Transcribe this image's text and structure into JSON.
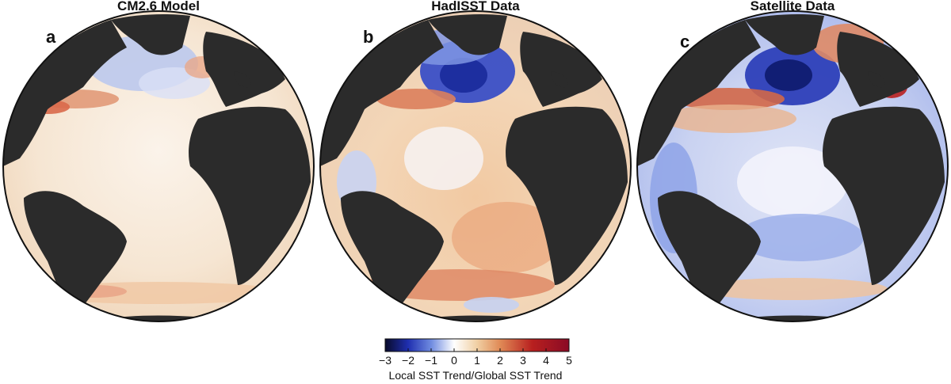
{
  "panels": [
    {
      "title": "CM2.6 Model",
      "letter": "a",
      "basemap": "atlantic-orthographic-globe",
      "north_atlantic": "weak-cooling",
      "south_atlantic": "mild-warming"
    },
    {
      "title": "HadISST Data",
      "letter": "b",
      "basemap": "atlantic-orthographic-globe",
      "north_atlantic": "strong-cooling",
      "south_atlantic": "warming"
    },
    {
      "title": "Satellite Data",
      "letter": "c",
      "basemap": "atlantic-orthographic-globe",
      "north_atlantic": "strong-cooling",
      "south_atlantic": "mixed"
    }
  ],
  "colorbar": {
    "label": "Local SST Trend/Global SST Trend",
    "ticks": [
      "−3",
      "−2",
      "−1",
      "0",
      "1",
      "2",
      "3",
      "4",
      "5"
    ],
    "min": -3,
    "max": 5,
    "colors": [
      "#080a2a",
      "#1f2fb0",
      "#6f8be0",
      "#ffffff",
      "#f0cfa3",
      "#e08a56",
      "#b8201f",
      "#8a0a25"
    ]
  },
  "colors": {
    "land": "#2b2b2b",
    "ocean_neutral": "#ffffff",
    "gulf_stream_warm": "#d9694a"
  }
}
